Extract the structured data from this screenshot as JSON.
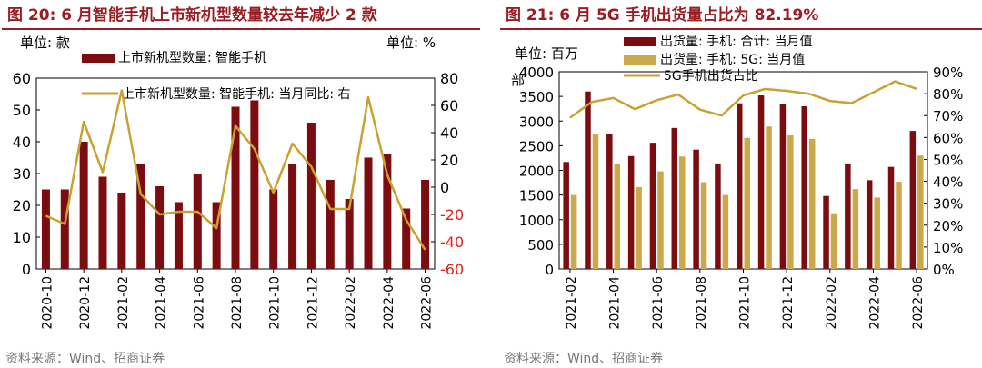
{
  "colors": {
    "title": "#9b1c22",
    "bar": "#7b0c0f",
    "gold": "#c9a94a",
    "line": "#c9a232",
    "negative": "#e0201b",
    "text": "#000000",
    "source": "#777777"
  },
  "left": {
    "title": "图 20:  6 月智能手机上市新机型数量较去年减少 2 款",
    "source": "资料来源：Wind、招商证券",
    "unit_left": "单位:  款",
    "unit_right": "单位:  %"
  },
  "right": {
    "title": "图 21:  6 月 5G 手机出货量占比为 82.19%",
    "source": "资料来源：Wind、招商证券",
    "unit_left": "单位:  百万",
    "unit_left2": "部"
  },
  "chart_data": [
    {
      "type": "bar+line",
      "title": "6 月智能手机上市新机型数量较去年减少 2 款",
      "categories": [
        "2020-10",
        "2020-11",
        "2020-12",
        "2021-01",
        "2021-02",
        "2021-03",
        "2021-04",
        "2021-05",
        "2021-06",
        "2021-07",
        "2021-08",
        "2021-09",
        "2021-10",
        "2021-11",
        "2021-12",
        "2022-01",
        "2022-02",
        "2022-03",
        "2022-04",
        "2022-05",
        "2022-06"
      ],
      "x_tick_labels": [
        "2020-10",
        "2020-12",
        "2021-02",
        "2021-04",
        "2021-06",
        "2021-08",
        "2021-10",
        "2021-12",
        "2022-02",
        "2022-04",
        "2022-06"
      ],
      "series": [
        {
          "name": "上市新机型数量: 智能手机",
          "axis": "left",
          "kind": "bar",
          "values": [
            25,
            25,
            40,
            29,
            24,
            33,
            26,
            21,
            30,
            21,
            51,
            53,
            25,
            33,
            46,
            28,
            22,
            35,
            36,
            19,
            28
          ]
        },
        {
          "name": "上市新机型数量: 智能手机: 当月同比: 右",
          "axis": "right",
          "kind": "line",
          "values": [
            -21,
            -27,
            48,
            11,
            71,
            -5,
            -20,
            -18,
            -18,
            -30,
            45,
            28,
            -4,
            32,
            15,
            -16,
            -16,
            66,
            9,
            -24,
            -46
          ]
        }
      ],
      "ylim_left": [
        0,
        60
      ],
      "yticks_left": [
        0,
        10,
        20,
        30,
        40,
        50,
        60
      ],
      "ylim_right": [
        -60,
        80
      ],
      "yticks_right": [
        -60,
        -40,
        -20,
        0,
        20,
        40,
        60,
        80
      ],
      "ylabel_left": "单位:  款",
      "ylabel_right": "单位:  %",
      "negative_ticks_color": "red"
    },
    {
      "type": "bar+line",
      "title": "6 月 5G 手机出货量占比为 82.19%",
      "categories": [
        "2021-02",
        "2021-03",
        "2021-04",
        "2021-05",
        "2021-06",
        "2021-07",
        "2021-08",
        "2021-09",
        "2021-10",
        "2021-11",
        "2021-12",
        "2022-01",
        "2022-02",
        "2022-03",
        "2022-04",
        "2022-05",
        "2022-06"
      ],
      "x_tick_labels": [
        "2021-02",
        "2021-04",
        "2021-06",
        "2021-08",
        "2021-10",
        "2021-12",
        "2022-02",
        "2022-04",
        "2022-06"
      ],
      "series": [
        {
          "name": "出货量: 手机: 合计: 当月值",
          "axis": "left",
          "kind": "bar",
          "values": [
            2170,
            3600,
            2740,
            2290,
            2560,
            2860,
            2420,
            2140,
            3360,
            3520,
            3340,
            3300,
            1480,
            2140,
            1800,
            2070,
            2800
          ]
        },
        {
          "name": "出货量: 手机: 5G: 当月值",
          "axis": "left",
          "kind": "bar",
          "values": [
            1500,
            2740,
            2140,
            1660,
            1980,
            2280,
            1760,
            1500,
            2660,
            2890,
            2710,
            2640,
            1130,
            1620,
            1450,
            1770,
            2300
          ]
        },
        {
          "name": "5G手机出货占比",
          "axis": "right",
          "kind": "line",
          "values": [
            69.0,
            76.2,
            78.0,
            72.9,
            77.0,
            79.6,
            72.7,
            70.0,
            79.2,
            82.1,
            81.3,
            80.0,
            76.7,
            75.7,
            80.6,
            85.6,
            82.19
          ]
        }
      ],
      "ylim_left": [
        0,
        4000
      ],
      "yticks_left": [
        0,
        500,
        1000,
        1500,
        2000,
        2500,
        3000,
        3500,
        4000
      ],
      "ylim_right": [
        0,
        90
      ],
      "yticks_right": [
        0,
        10,
        20,
        30,
        40,
        50,
        60,
        70,
        80,
        90
      ],
      "ylabel_left": "单位:  百万部"
    }
  ]
}
